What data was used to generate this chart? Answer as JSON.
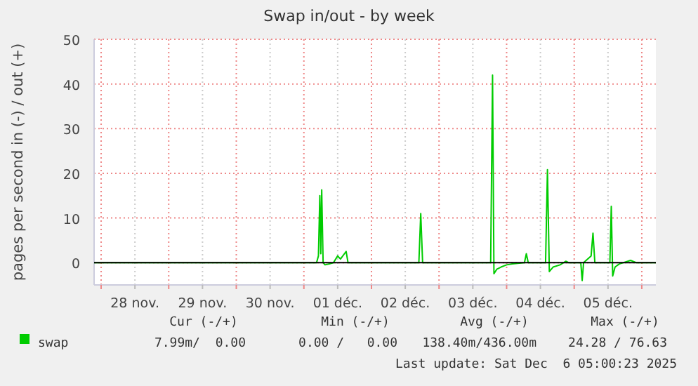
{
  "chart_data": {
    "type": "line",
    "title": "Swap in/out - by week",
    "ylabel": "pages per second in (-) / out (+)",
    "xlim": [
      "2025-11-27T21:30",
      "2025-12-06T05:00"
    ],
    "xticks": [
      {
        "value": "2025-11-28T00:00",
        "label": null
      },
      {
        "value": "2025-11-28T12:00",
        "label": "28 nov."
      },
      {
        "value": "2025-11-29T00:00",
        "label": null
      },
      {
        "value": "2025-11-29T12:00",
        "label": "29 nov."
      },
      {
        "value": "2025-11-30T00:00",
        "label": null
      },
      {
        "value": "2025-11-30T12:00",
        "label": "30 nov."
      },
      {
        "value": "2025-12-01T00:00",
        "label": null
      },
      {
        "value": "2025-12-01T12:00",
        "label": "01 déc."
      },
      {
        "value": "2025-12-02T00:00",
        "label": null
      },
      {
        "value": "2025-12-02T12:00",
        "label": "02 déc."
      },
      {
        "value": "2025-12-03T00:00",
        "label": null
      },
      {
        "value": "2025-12-03T12:00",
        "label": "03 déc."
      },
      {
        "value": "2025-12-04T00:00",
        "label": null
      },
      {
        "value": "2025-12-04T12:00",
        "label": "04 déc."
      },
      {
        "value": "2025-12-05T00:00",
        "label": null
      },
      {
        "value": "2025-12-05T12:00",
        "label": "05 déc."
      },
      {
        "value": "2025-12-06T00:00",
        "label": null
      }
    ],
    "ylim": [
      -5,
      50
    ],
    "yticks": [
      0,
      10,
      20,
      30,
      40,
      50
    ],
    "grid": true,
    "legend": "bottom left",
    "ref_lines": [
      {
        "axis": "y",
        "value": 0,
        "color": "#000000"
      }
    ],
    "x": [
      "2025-11-27T21:30",
      "2025-12-01T04:30",
      "2025-12-01T05:10",
      "2025-12-01T05:40",
      "2025-12-01T06:00",
      "2025-12-01T06:20",
      "2025-12-01T06:50",
      "2025-12-01T07:30",
      "2025-12-01T09:00",
      "2025-12-01T10:30",
      "2025-12-01T12:00",
      "2025-12-01T13:00",
      "2025-12-01T15:00",
      "2025-12-01T15:40",
      "2025-12-02T16:50",
      "2025-12-02T17:30",
      "2025-12-02T18:10",
      "2025-12-03T18:20",
      "2025-12-03T19:00",
      "2025-12-03T19:30",
      "2025-12-03T20:30",
      "2025-12-03T22:00",
      "2025-12-04T00:00",
      "2025-12-04T02:00",
      "2025-12-04T06:20",
      "2025-12-04T07:00",
      "2025-12-04T07:40",
      "2025-12-04T13:50",
      "2025-12-04T14:30",
      "2025-12-04T15:10",
      "2025-12-04T16:30",
      "2025-12-04T19:00",
      "2025-12-04T21:00",
      "2025-12-04T22:00",
      "2025-12-05T02:20",
      "2025-12-05T02:50",
      "2025-12-05T03:20",
      "2025-12-05T06:00",
      "2025-12-05T06:40",
      "2025-12-05T07:20",
      "2025-12-05T12:40",
      "2025-12-05T13:10",
      "2025-12-05T13:40",
      "2025-12-05T14:30",
      "2025-12-05T16:00",
      "2025-12-05T20:00",
      "2025-12-05T22:00",
      "2025-12-06T05:00"
    ],
    "series": [
      {
        "name": "swap",
        "color": "#00cc00",
        "values": [
          0,
          0,
          1.5,
          15,
          2,
          16.3,
          0,
          -0.5,
          -0.3,
          0,
          1.5,
          0.8,
          2.5,
          0,
          0,
          11,
          0,
          0,
          42,
          -2.5,
          -1.5,
          -1,
          -0.5,
          -0.3,
          0,
          2,
          0,
          0,
          20.8,
          -2,
          -1,
          -0.5,
          0.3,
          0,
          0,
          -4,
          0,
          1.5,
          6.6,
          0,
          0,
          12.6,
          -3,
          -1,
          -0.3,
          0.5,
          0,
          0
        ]
      }
    ],
    "annotations": [
      "Cur (-/+)",
      "Min (-/+)",
      "Avg (-/+)",
      "Max (-/+)",
      "7.99m/  0.00",
      "0.00 /   0.00",
      "138.40m/436.00m",
      "24.28 / 76.63",
      "Last update: Sat Dec  6 05:00:23 2025"
    ]
  }
}
